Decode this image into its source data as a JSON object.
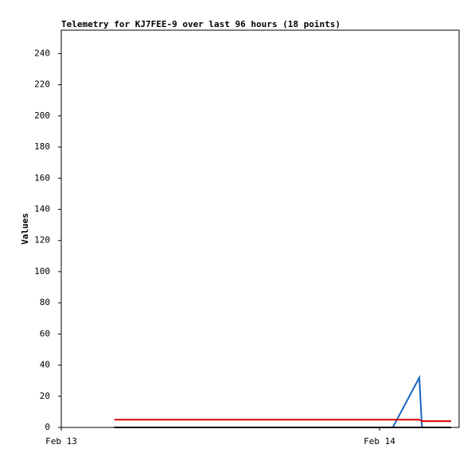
{
  "chart_data": {
    "type": "line",
    "title": "Telemetry for KJ7FEE-9 over last 96 hours (18 points)",
    "y_label": "Values",
    "x": [
      4.0,
      5.5,
      7.0,
      8.5,
      10.0,
      11.5,
      13.0,
      14.5,
      16.0,
      17.5,
      19.0,
      20.5,
      22.0,
      23.5,
      25.0,
      27.0,
      27.2,
      29.4
    ],
    "series": [
      {
        "color": "#1565c0",
        "values": [
          0,
          0,
          0,
          0,
          0,
          0,
          0,
          0,
          0,
          0,
          0,
          0,
          0,
          0,
          0,
          32,
          0,
          0
        ]
      },
      {
        "color": "#e00000",
        "values": [
          5,
          5,
          5,
          5,
          5,
          5,
          5,
          5,
          5,
          5,
          5,
          5,
          5,
          5,
          5,
          5,
          4,
          4
        ]
      },
      {
        "color": "#000000",
        "values": [
          0,
          0,
          0,
          0,
          0,
          0,
          0,
          0,
          0,
          0,
          0,
          0,
          0,
          0,
          0,
          0,
          0,
          0
        ]
      }
    ],
    "xlim": [
      0,
      30
    ],
    "xticks": [
      {
        "value": 0,
        "label": "Feb 13"
      },
      {
        "value": 24,
        "label": "Feb 14"
      }
    ],
    "ylim": [
      0,
      255
    ],
    "yticks": [
      0,
      20,
      40,
      60,
      80,
      100,
      120,
      140,
      160,
      180,
      200,
      220,
      240
    ]
  }
}
